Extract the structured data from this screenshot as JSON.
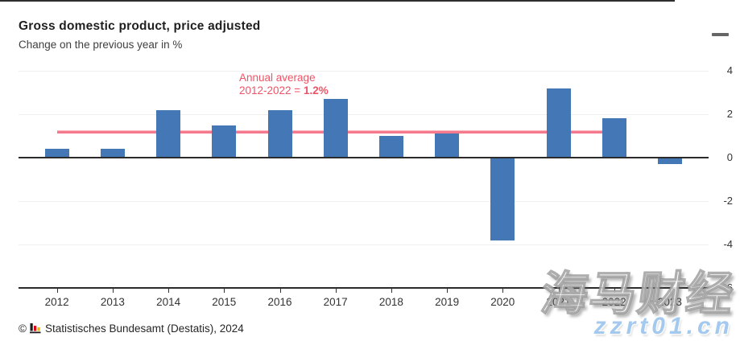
{
  "header": {
    "title": "Gross domestic product, price adjusted",
    "subtitle": "Change on the previous year in %"
  },
  "toolbar": {
    "menu_icon": "hamburger-menu"
  },
  "chart_data": {
    "type": "bar",
    "title": "Gross domestic product, price adjusted",
    "subtitle": "Change on the previous year in %",
    "unit": "%",
    "categories": [
      "2012",
      "2013",
      "2014",
      "2015",
      "2016",
      "2017",
      "2018",
      "2019",
      "2020",
      "2021",
      "2022",
      "2023"
    ],
    "values": [
      0.4,
      0.4,
      2.2,
      1.5,
      2.2,
      2.7,
      1.0,
      1.1,
      -3.8,
      3.2,
      1.8,
      -0.3
    ],
    "ylim": [
      -6,
      4
    ],
    "yticks": [
      4,
      2,
      0,
      -2,
      -4,
      -6
    ],
    "grid": true,
    "legend": "none",
    "bar_color": "#4377b6",
    "average_line": {
      "value": 1.2,
      "from_category": "2012",
      "to_category": "2022",
      "color": "#f4798c",
      "label_line1": "Annual average",
      "label_line2_prefix": "2012-2022 = ",
      "label_value": "1.2%",
      "label_color": "#ee5467"
    }
  },
  "footer": {
    "copyright": "©",
    "publisher_logo": "destatis-bar-chart-icon",
    "text": "Statistisches Bundesamt (Destatis), 2024"
  },
  "watermark": {
    "brand_text": "海马财经",
    "site_text": "zzrt01.cn",
    "site_color": "#a4c9ef"
  }
}
